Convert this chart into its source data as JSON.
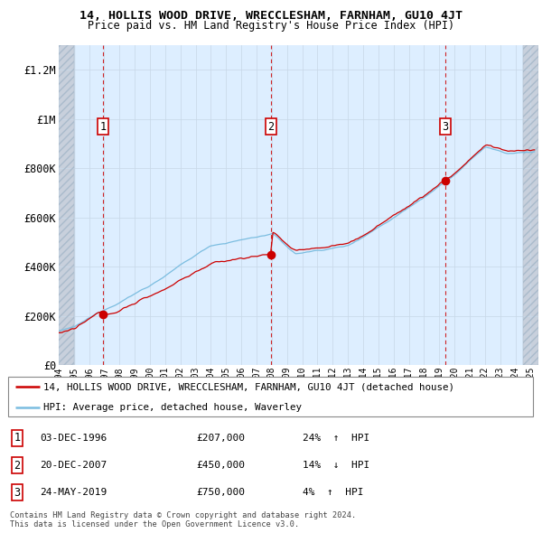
{
  "title": "14, HOLLIS WOOD DRIVE, WRECCLESHAM, FARNHAM, GU10 4JT",
  "subtitle": "Price paid vs. HM Land Registry's House Price Index (HPI)",
  "ylabel_ticks": [
    "£0",
    "£200K",
    "£400K",
    "£600K",
    "£800K",
    "£1M",
    "£1.2M"
  ],
  "ytick_values": [
    0,
    200000,
    400000,
    600000,
    800000,
    1000000,
    1200000
  ],
  "ylim": [
    0,
    1300000
  ],
  "xlim_start": 1994.0,
  "xlim_end": 2025.5,
  "legend_line1": "14, HOLLIS WOOD DRIVE, WRECCLESHAM, FARNHAM, GU10 4JT (detached house)",
  "legend_line2": "HPI: Average price, detached house, Waverley",
  "transactions": [
    {
      "num": 1,
      "date": "03-DEC-1996",
      "price": 207000,
      "pct": "24%",
      "dir": "↑",
      "year": 1996.92
    },
    {
      "num": 2,
      "date": "20-DEC-2007",
      "price": 450000,
      "pct": "14%",
      "dir": "↓",
      "year": 2007.96
    },
    {
      "num": 3,
      "date": "24-MAY-2019",
      "price": 750000,
      "pct": "4%",
      "dir": "↑",
      "year": 2019.39
    }
  ],
  "copyright_text": "Contains HM Land Registry data © Crown copyright and database right 2024.\nThis data is licensed under the Open Government Licence v3.0.",
  "hpi_color": "#7bbde0",
  "price_color": "#cc0000",
  "dashed_line_color": "#cc0000",
  "grid_color": "#c8d8e8",
  "plot_bg_color": "#ddeeff",
  "hatch_bg_color": "#c8d0dc"
}
